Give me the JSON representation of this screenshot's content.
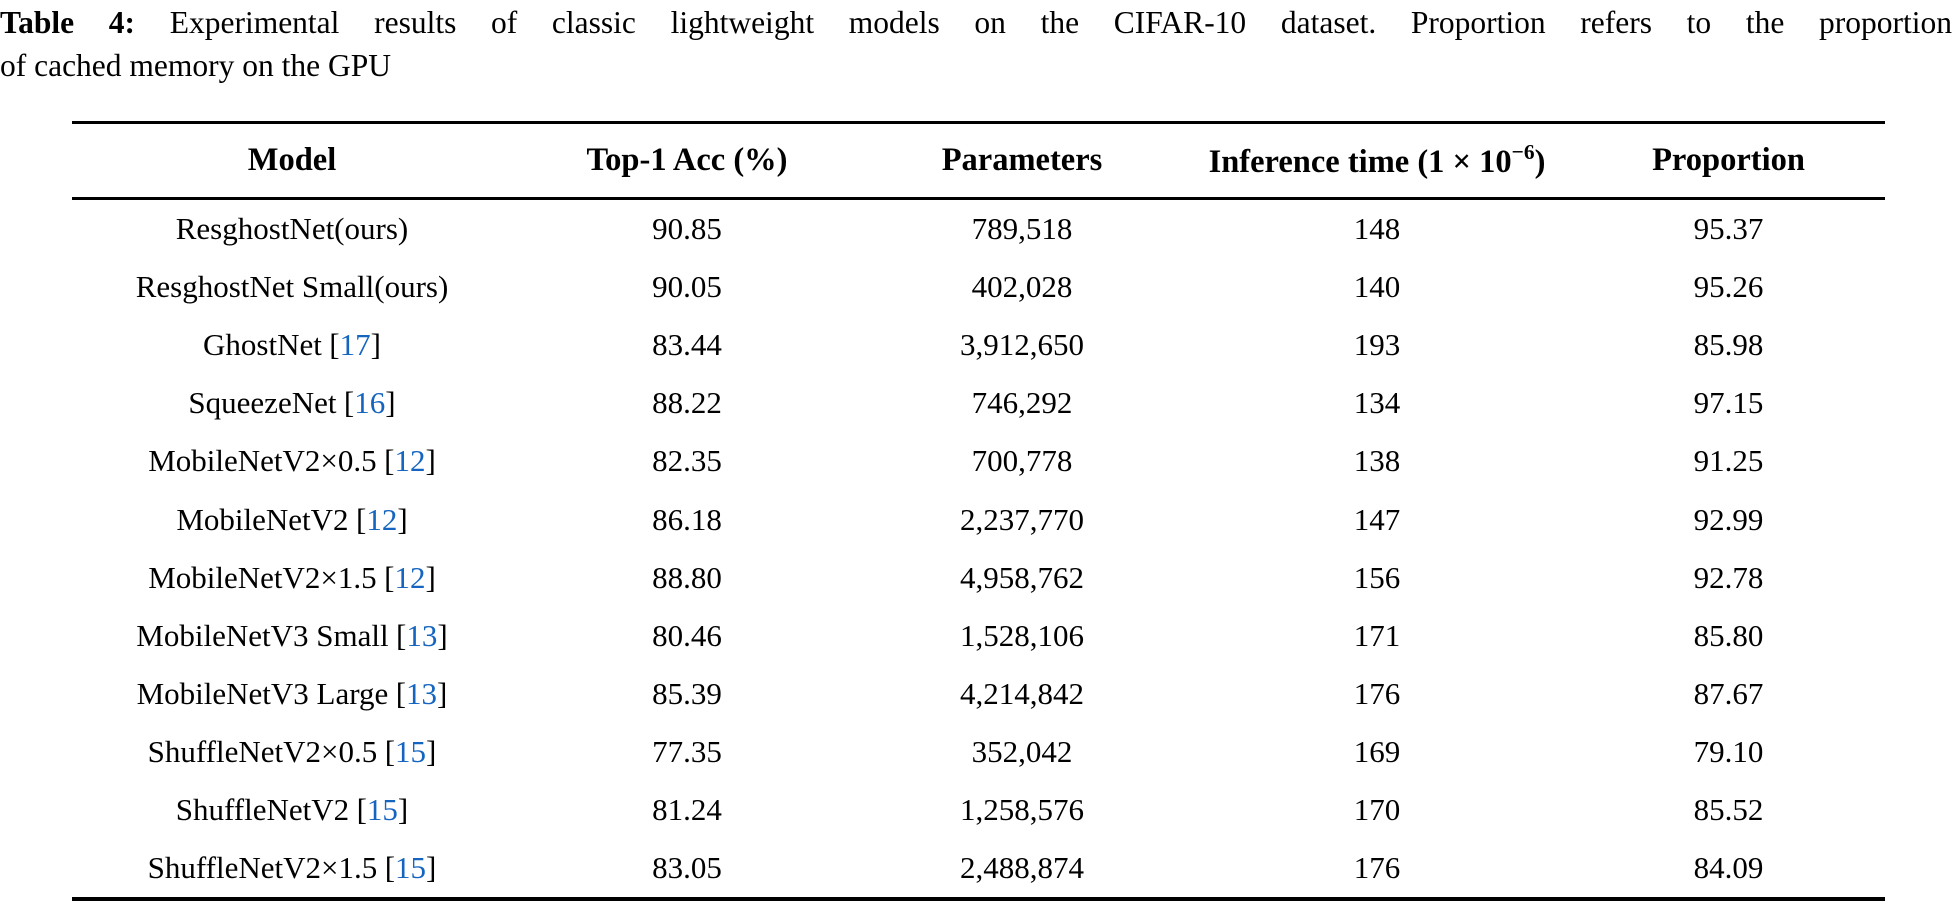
{
  "caption": {
    "label": "Table 4:",
    "line1": "Experimental results of classic lightweight models on the CIFAR-10 dataset. Proportion refers to the proportion",
    "line2": "of cached memory on the GPU"
  },
  "table": {
    "header": {
      "model": "Model",
      "acc": "Top-1 Acc (%)",
      "params": "Parameters",
      "inference_prefix": "Inference time (1 × 10",
      "inference_sup": "−6",
      "inference_suffix": ")",
      "proportion": "Proportion"
    },
    "rows": [
      {
        "model": "ResghostNet(ours)",
        "cite": null,
        "acc": "90.85",
        "params": "789,518",
        "time": "148",
        "prop": "95.37"
      },
      {
        "model": "ResghostNet Small(ours)",
        "cite": null,
        "acc": "90.05",
        "params": "402,028",
        "time": "140",
        "prop": "95.26"
      },
      {
        "model": "GhostNet",
        "cite": "17",
        "acc": "83.44",
        "params": "3,912,650",
        "time": "193",
        "prop": "85.98"
      },
      {
        "model": "SqueezeNet",
        "cite": "16",
        "acc": "88.22",
        "params": "746,292",
        "time": "134",
        "prop": "97.15"
      },
      {
        "model": "MobileNetV2×0.5",
        "cite": "12",
        "acc": "82.35",
        "params": "700,778",
        "time": "138",
        "prop": "91.25"
      },
      {
        "model": "MobileNetV2",
        "cite": "12",
        "acc": "86.18",
        "params": "2,237,770",
        "time": "147",
        "prop": "92.99"
      },
      {
        "model": "MobileNetV2×1.5",
        "cite": "12",
        "acc": "88.80",
        "params": "4,958,762",
        "time": "156",
        "prop": "92.78"
      },
      {
        "model": "MobileNetV3 Small",
        "cite": "13",
        "acc": "80.46",
        "params": "1,528,106",
        "time": "171",
        "prop": "85.80"
      },
      {
        "model": "MobileNetV3 Large",
        "cite": "13",
        "acc": "85.39",
        "params": "4,214,842",
        "time": "176",
        "prop": "87.67"
      },
      {
        "model": "ShuffleNetV2×0.5",
        "cite": "15",
        "acc": "77.35",
        "params": "352,042",
        "time": "169",
        "prop": "79.10"
      },
      {
        "model": "ShuffleNetV2",
        "cite": "15",
        "acc": "81.24",
        "params": "1,258,576",
        "time": "170",
        "prop": "85.52"
      },
      {
        "model": "ShuffleNetV2×1.5",
        "cite": "15",
        "acc": "83.05",
        "params": "2,488,874",
        "time": "176",
        "prop": "84.09"
      }
    ]
  },
  "colors": {
    "citation_blue": "#1565c0",
    "text": "#000000",
    "background": "#ffffff",
    "rule": "#000000"
  }
}
